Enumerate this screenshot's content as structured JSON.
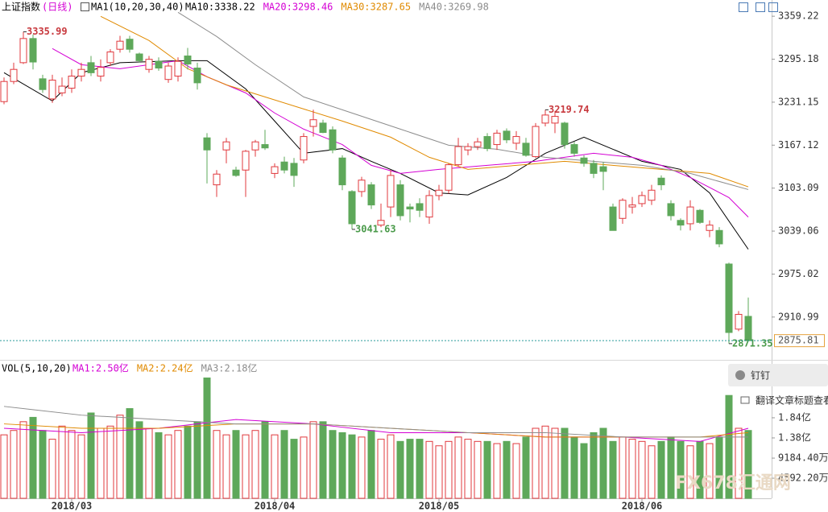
{
  "chart_data": [
    {
      "type": "candlestick",
      "title": "上证指数",
      "period": "(日线)",
      "indicator_label": "MA1(10,20,30,40)",
      "ma_legend": [
        {
          "label": "MA10:3338.22",
          "color": "#000000",
          "x": [
            0,
            5,
            8,
            12,
            18,
            21,
            25,
            28,
            31,
            35,
            38,
            41,
            45,
            48,
            52,
            56,
            60,
            63,
            66,
            70,
            73,
            77
          ],
          "values": [
            3275,
            3233,
            3275,
            3290,
            3293,
            3293,
            3251,
            3203,
            3155,
            3162,
            3143,
            3125,
            3096,
            3093,
            3119,
            3155,
            3179,
            3161,
            3143,
            3131,
            3096,
            3012
          ]
        },
        {
          "label": "MA20:3298.46",
          "color": "#d400d4",
          "x": [
            5,
            8,
            12,
            18,
            21,
            25,
            28,
            31,
            35,
            38,
            41,
            45,
            50,
            55,
            58,
            61,
            65,
            68,
            71,
            75,
            77
          ],
          "values": [
            3311,
            3287,
            3281,
            3293,
            3269,
            3245,
            3215,
            3191,
            3168,
            3137,
            3125,
            3131,
            3137,
            3143,
            3149,
            3155,
            3149,
            3137,
            3119,
            3089,
            3060
          ]
        },
        {
          "label": "MA30:3287.65",
          "color": "#e08a00",
          "x": [
            10,
            15,
            19,
            23,
            27,
            31,
            35,
            40,
            44,
            48,
            53,
            58,
            63,
            68,
            73,
            77
          ],
          "values": [
            3359,
            3323,
            3281,
            3257,
            3239,
            3221,
            3203,
            3179,
            3149,
            3131,
            3137,
            3143,
            3137,
            3131,
            3125,
            3105
          ]
        },
        {
          "label": "MA40:3269.98",
          "color": "#8c8c8c",
          "x": [
            18,
            22,
            26,
            31,
            36,
            41,
            46,
            51,
            56,
            61,
            66,
            71,
            77
          ],
          "values": [
            3365,
            3329,
            3287,
            3239,
            3215,
            3191,
            3167,
            3161,
            3149,
            3143,
            3137,
            3125,
            3101
          ]
        }
      ],
      "candles": {
        "open": [
          3232,
          3262,
          3290,
          3326,
          3266,
          3236,
          3245,
          3252,
          3270,
          3290,
          3270,
          3290,
          3310,
          3325,
          3303,
          3280,
          3292,
          3265,
          3270,
          3300,
          3282,
          3178,
          3108,
          3160,
          3130,
          3130,
          3160,
          3168,
          3125,
          3142,
          3140,
          3145,
          3195,
          3200,
          3190,
          3148,
          3098,
          3098,
          3108,
          3048,
          3075,
          3108,
          3075,
          3080,
          3060,
          3092,
          3100,
          3138,
          3160,
          3165,
          3180,
          3168,
          3188,
          3170,
          3170,
          3150,
          3200,
          3200,
          3200,
          3168,
          3148,
          3140,
          3135,
          3075,
          3058,
          3075,
          3080,
          3085,
          3118,
          3080,
          3055,
          3050,
          3070,
          3040,
          3040,
          2990,
          2893,
          2912
        ],
        "high": [
          3268,
          3290,
          3335.99,
          3332,
          3272,
          3272,
          3268,
          3280,
          3290,
          3300,
          3295,
          3310,
          3330,
          3330,
          3305,
          3300,
          3298,
          3290,
          3298,
          3312,
          3290,
          3185,
          3130,
          3178,
          3135,
          3160,
          3175,
          3190,
          3140,
          3150,
          3148,
          3185,
          3220,
          3205,
          3195,
          3152,
          3100,
          3120,
          3112,
          3080,
          3130,
          3115,
          3080,
          3088,
          3100,
          3108,
          3140,
          3178,
          3170,
          3178,
          3185,
          3190,
          3192,
          3188,
          3178,
          3200,
          3219.74,
          3218,
          3202,
          3172,
          3152,
          3145,
          3142,
          3080,
          3088,
          3090,
          3098,
          3108,
          3122,
          3085,
          3058,
          3085,
          3072,
          3055,
          3045,
          2992,
          2920,
          2940
        ],
        "low": [
          3228,
          3258,
          3288,
          3280,
          3245,
          3230,
          3240,
          3245,
          3262,
          3270,
          3262,
          3285,
          3305,
          3305,
          3290,
          3275,
          3278,
          3260,
          3262,
          3280,
          3250,
          3110,
          3090,
          3140,
          3120,
          3090,
          3150,
          3160,
          3118,
          3125,
          3105,
          3140,
          3180,
          3185,
          3155,
          3100,
          3041.63,
          3090,
          3072,
          3045,
          3060,
          3055,
          3052,
          3060,
          3050,
          3085,
          3095,
          3135,
          3152,
          3160,
          3158,
          3160,
          3170,
          3160,
          3150,
          3148,
          3195,
          3185,
          3162,
          3150,
          3135,
          3118,
          3100,
          3040,
          3050,
          3065,
          3075,
          3078,
          3100,
          3055,
          3040,
          3040,
          3050,
          3030,
          3015,
          2871.35,
          2890,
          2876
        ],
        "close": [
          3262,
          3280,
          3326,
          3291,
          3250,
          3264,
          3255,
          3270,
          3280,
          3275,
          3283,
          3306,
          3322,
          3310,
          3293,
          3295,
          3282,
          3285,
          3292,
          3288,
          3260,
          3160,
          3124,
          3172,
          3122,
          3158,
          3172,
          3163,
          3135,
          3130,
          3122,
          3180,
          3205,
          3186,
          3160,
          3108,
          3050,
          3115,
          3078,
          3055,
          3122,
          3062,
          3072,
          3070,
          3092,
          3100,
          3138,
          3165,
          3165,
          3172,
          3162,
          3185,
          3175,
          3180,
          3152,
          3195,
          3212,
          3210,
          3168,
          3155,
          3140,
          3125,
          3128,
          3040,
          3085,
          3078,
          3092,
          3100,
          3108,
          3062,
          3048,
          3075,
          3052,
          3048,
          3020,
          2888,
          2915,
          2875.81
        ]
      },
      "up_color": "#e0393e",
      "down_color": "#5ea85a",
      "last_price_color": "#2a9a9a",
      "marked_points": [
        {
          "index": 2,
          "field": "high"
        },
        {
          "index": 56,
          "field": "high"
        },
        {
          "index": 36,
          "field": "low"
        },
        {
          "index": 75,
          "field": "low"
        }
      ],
      "ylim": [
        2870,
        3369
      ],
      "yticks": [
        2910.99,
        2975.02,
        3039.06,
        3103.09,
        3167.12,
        3231.15,
        3295.18,
        3359.22
      ]
    },
    {
      "type": "bar",
      "title": "VOL(5,10,20)",
      "ma_legend": [
        {
          "label": "MA1:2.50亿",
          "color": "#d400d4",
          "x": [
            0,
            8,
            16,
            24,
            32,
            40,
            48,
            56,
            64,
            72,
            77
          ],
          "values": [
            1.6,
            1.5,
            1.6,
            1.8,
            1.7,
            1.5,
            1.5,
            1.4,
            1.4,
            1.3,
            1.6
          ]
        },
        {
          "label": "MA2:2.24亿",
          "color": "#e08a00",
          "x": [
            0,
            8,
            16,
            24,
            32,
            40,
            48,
            56,
            64,
            72,
            77
          ],
          "values": [
            1.7,
            1.6,
            1.6,
            1.7,
            1.7,
            1.6,
            1.5,
            1.4,
            1.4,
            1.4,
            1.5
          ]
        },
        {
          "label": "MA3:2.18亿",
          "color": "#8c8c8c",
          "x": [
            0,
            8,
            16,
            24,
            32,
            40,
            48,
            56,
            64,
            72,
            77
          ],
          "values": [
            2.1,
            1.9,
            1.8,
            1.7,
            1.7,
            1.6,
            1.5,
            1.5,
            1.4,
            1.4,
            1.4
          ]
        }
      ],
      "values": [
        1.45,
        1.55,
        1.75,
        1.85,
        1.55,
        1.35,
        1.65,
        1.55,
        1.45,
        1.95,
        1.6,
        1.65,
        1.9,
        2.05,
        1.75,
        1.6,
        1.5,
        1.45,
        1.55,
        1.65,
        1.75,
        2.75,
        1.55,
        1.45,
        1.55,
        1.45,
        1.55,
        1.75,
        1.45,
        1.55,
        1.35,
        1.4,
        1.75,
        1.75,
        1.55,
        1.5,
        1.45,
        1.4,
        1.55,
        1.35,
        1.45,
        1.3,
        1.35,
        1.35,
        1.3,
        1.2,
        1.3,
        1.4,
        1.35,
        1.3,
        1.3,
        1.25,
        1.3,
        1.25,
        1.4,
        1.6,
        1.65,
        1.6,
        1.6,
        1.4,
        1.25,
        1.5,
        1.6,
        1.3,
        1.4,
        1.35,
        1.3,
        1.2,
        1.3,
        1.4,
        1.3,
        1.2,
        1.3,
        1.25,
        1.4,
        2.35,
        1.6,
        1.55
      ],
      "ylim": [
        0,
        3.2
      ],
      "yticks": [
        {
          "value": 0.45922,
          "label": "4592.20万"
        },
        {
          "value": 0.91844,
          "label": "9184.40万"
        },
        {
          "value": 1.38,
          "label": "1.38亿"
        },
        {
          "value": 1.84,
          "label": "1.84亿"
        }
      ],
      "x_labels": [
        {
          "index": 7,
          "label": "2018/03"
        },
        {
          "index": 28,
          "label": "2018/04"
        },
        {
          "index": 45,
          "label": "2018/05"
        },
        {
          "index": 66,
          "label": "2018/06"
        }
      ]
    }
  ],
  "side_buttons": [
    "钉钉",
    "翻译文章标题查看"
  ],
  "watermark": "FX678汇通网"
}
